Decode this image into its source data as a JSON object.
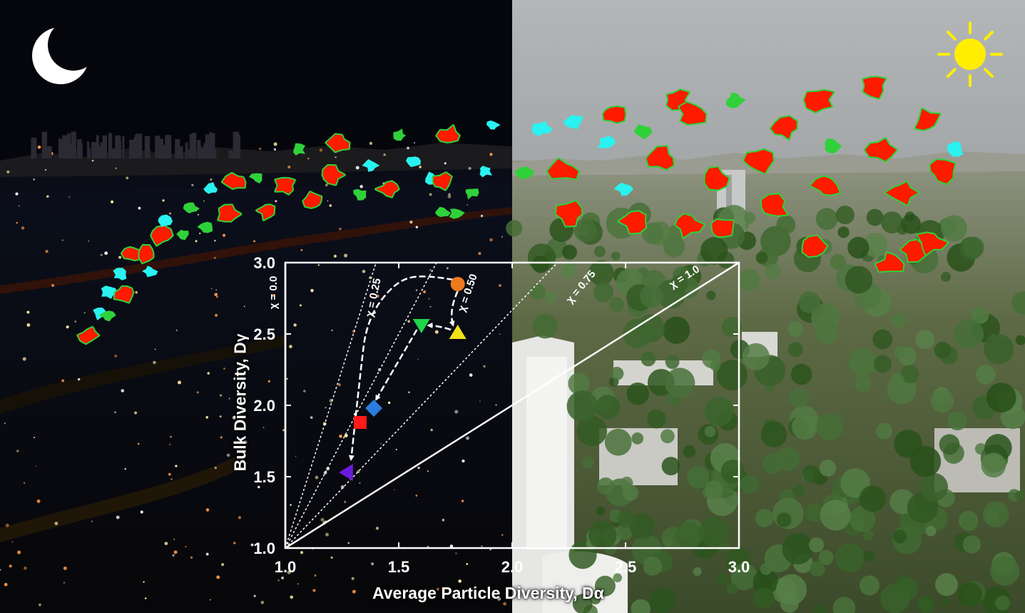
{
  "scene": {
    "night_icon": "crescent-moon-icon",
    "day_icon": "sun-icon",
    "night_sky_color": "#05060c",
    "day_sky_color": "#a9acae",
    "moon_color": "#ffffff",
    "sun_color": "#ffee00"
  },
  "particle_colors": {
    "red": "#ff1a00",
    "green": "#2fd13a",
    "cyan": "#29f2f0"
  },
  "chart_data": {
    "type": "scatter",
    "xlabel": "Average Particle Diversity, D",
    "xlabel_symbol": "α",
    "ylabel": "Bulk Diversity, D",
    "ylabel_symbol": "γ",
    "xlim": [
      1.0,
      3.0
    ],
    "ylim": [
      1.0,
      3.0
    ],
    "xticks": [
      "1.0",
      "1.5",
      "2.0",
      "2.5",
      "3.0"
    ],
    "yticks": [
      "1.0",
      "1.5",
      "2.0",
      "2.5",
      "3.0"
    ],
    "grid": false,
    "reference_lines": [
      {
        "label": "χ = 0.0",
        "slope": null,
        "style": "solid"
      },
      {
        "label": "χ = 0.25",
        "slope": 5.0,
        "style": "dotted"
      },
      {
        "label": "χ = 0.50",
        "slope": 3.0,
        "style": "dotted"
      },
      {
        "label": "χ = 0.75",
        "slope": 1.667,
        "style": "dotted"
      },
      {
        "label": "χ = 1.0",
        "slope": 1.0,
        "style": "solid"
      }
    ],
    "points": [
      {
        "x": 1.76,
        "y": 2.85,
        "marker": "circle",
        "color": "#ee7a1e"
      },
      {
        "x": 1.6,
        "y": 2.56,
        "marker": "triangle-down",
        "color": "#1fd44a"
      },
      {
        "x": 1.76,
        "y": 2.51,
        "marker": "triangle-up",
        "color": "#f2e21a"
      },
      {
        "x": 1.39,
        "y": 1.98,
        "marker": "diamond",
        "color": "#2a7de0"
      },
      {
        "x": 1.33,
        "y": 1.88,
        "marker": "square",
        "color": "#ff1a1a"
      },
      {
        "x": 1.27,
        "y": 1.53,
        "marker": "triangle-left",
        "color": "#6a1bd9"
      }
    ],
    "paths": [
      [
        [
          1.74,
          2.88
        ],
        [
          1.6,
          2.92
        ],
        [
          1.48,
          2.86
        ],
        [
          1.36,
          2.6
        ],
        [
          1.33,
          2.22
        ],
        [
          1.29,
          1.62
        ]
      ],
      [
        [
          1.76,
          2.8
        ],
        [
          1.72,
          2.66
        ],
        [
          1.74,
          2.56
        ]
      ],
      [
        [
          1.73,
          2.53
        ],
        [
          1.67,
          2.56
        ],
        [
          1.63,
          2.56
        ]
      ],
      [
        [
          1.58,
          2.53
        ],
        [
          1.4,
          2.04
        ]
      ]
    ]
  }
}
